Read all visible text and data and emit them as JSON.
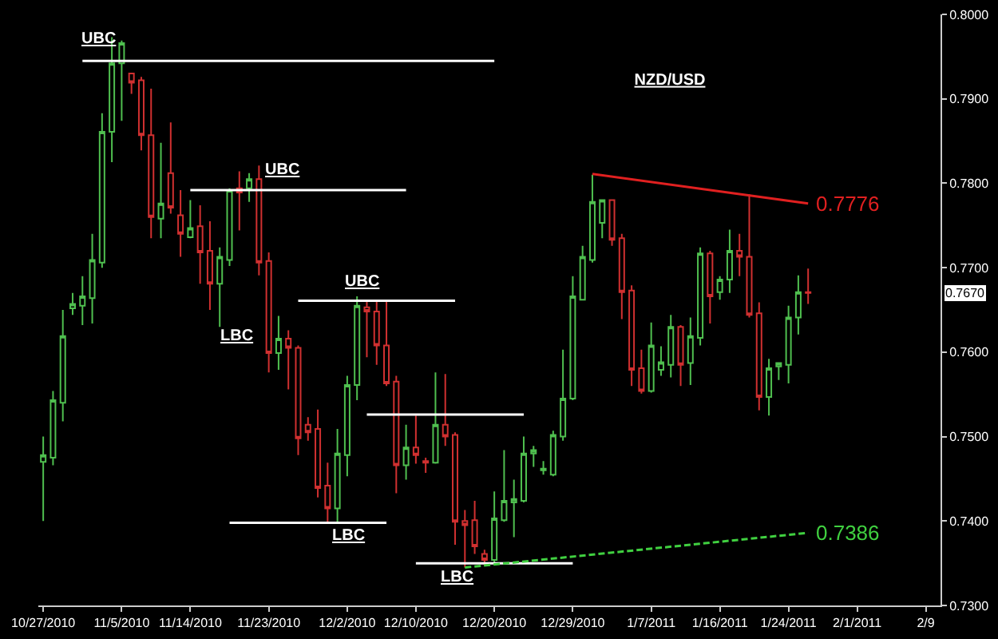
{
  "chart_data": {
    "type": "candlestick",
    "title": "NZD/USD",
    "categories": [
      "10/27/2010",
      null,
      null,
      null,
      null,
      null,
      null,
      null,
      "11/5/2010",
      null,
      null,
      null,
      null,
      null,
      null,
      "11/14/2010",
      null,
      null,
      null,
      null,
      null,
      null,
      null,
      "11/23/2010",
      null,
      null,
      null,
      null,
      null,
      null,
      null,
      "12/2/2010",
      null,
      null,
      null,
      null,
      null,
      null,
      "12/10/2010",
      null,
      null,
      null,
      null,
      null,
      null,
      null,
      "12/20/2010",
      null,
      null,
      null,
      null,
      null,
      null,
      null,
      "12/29/2010",
      null,
      null,
      null,
      null,
      null,
      null,
      null,
      "1/7/2011",
      null,
      null,
      null,
      null,
      null,
      null,
      "1/16/2011",
      null,
      null,
      null,
      null,
      null,
      null,
      "1/24/2011",
      null,
      null,
      null,
      null,
      null,
      null,
      "2/1/2011",
      null,
      null,
      null,
      null,
      null,
      null,
      "2/9",
      null
    ],
    "ylim": [
      0.73,
      0.8
    ],
    "yticks": [
      {
        "value": 0.73,
        "label": "0.7300"
      },
      {
        "value": 0.74,
        "label": "0.7400"
      },
      {
        "value": 0.75,
        "label": "0.7500"
      },
      {
        "value": 0.76,
        "label": "0.7600"
      },
      {
        "value": 0.77,
        "label": "0.7700"
      },
      {
        "value": 0.78,
        "label": "0.7800"
      },
      {
        "value": 0.79,
        "label": "0.7900"
      },
      {
        "value": 0.8,
        "label": "0.8000"
      }
    ],
    "grid": false,
    "series": [
      {
        "ohlc": [
          [
            0.747,
            0.75,
            0.74,
            0.7478
          ],
          [
            0.7475,
            0.7554,
            0.7466,
            0.7543
          ],
          [
            0.754,
            0.765,
            0.7518,
            0.7619
          ],
          [
            0.7652,
            0.767,
            0.7644,
            0.7657
          ],
          [
            0.7655,
            0.769,
            0.7632,
            0.7666
          ],
          [
            0.7664,
            0.774,
            0.7634,
            0.7709
          ],
          [
            0.7706,
            0.7883,
            0.77,
            0.7861
          ],
          [
            0.7861,
            0.7973,
            0.7825,
            0.7942
          ],
          [
            0.7942,
            0.7969,
            0.7874,
            0.7966
          ],
          [
            0.793,
            0.793,
            0.7906,
            0.7919
          ],
          [
            0.7922,
            0.7926,
            0.7839,
            0.7857
          ],
          [
            0.7857,
            0.7912,
            0.7735,
            0.776
          ],
          [
            0.7758,
            0.7848,
            0.7735,
            0.7776
          ],
          [
            0.7812,
            0.7872,
            0.7764,
            0.7771
          ],
          [
            0.7762,
            0.7792,
            0.7713,
            0.774
          ],
          [
            0.7736,
            0.778,
            0.7735,
            0.7747
          ],
          [
            0.7749,
            0.7774,
            0.7681,
            0.7718
          ],
          [
            0.772,
            0.7755,
            0.765,
            0.7681
          ],
          [
            0.7681,
            0.7724,
            0.763,
            0.7713
          ],
          [
            0.7709,
            0.7794,
            0.7702,
            0.7792
          ],
          [
            0.7794,
            0.7814,
            0.7744,
            0.7789
          ],
          [
            0.7794,
            0.7812,
            0.7778,
            0.7805
          ],
          [
            0.7805,
            0.7821,
            0.7691,
            0.7706
          ],
          [
            0.7708,
            0.7718,
            0.7576,
            0.7599
          ],
          [
            0.7599,
            0.7643,
            0.7579,
            0.7616
          ],
          [
            0.7616,
            0.7626,
            0.7556,
            0.7605
          ],
          [
            0.7605,
            0.7608,
            0.7478,
            0.7498
          ],
          [
            0.7514,
            0.7523,
            0.7495,
            0.7505
          ],
          [
            0.7509,
            0.7532,
            0.7428,
            0.7439
          ],
          [
            0.7442,
            0.7469,
            0.7399,
            0.7415
          ],
          [
            0.7415,
            0.7509,
            0.7399,
            0.748
          ],
          [
            0.7478,
            0.7572,
            0.7453,
            0.7561
          ],
          [
            0.7561,
            0.7666,
            0.7543,
            0.7655
          ],
          [
            0.7653,
            0.7661,
            0.7594,
            0.7648
          ],
          [
            0.7648,
            0.7661,
            0.7585,
            0.7608
          ],
          [
            0.7608,
            0.7662,
            0.756,
            0.7563
          ],
          [
            0.7565,
            0.7572,
            0.7433,
            0.7466
          ],
          [
            0.7466,
            0.7514,
            0.7449,
            0.7487
          ],
          [
            0.7487,
            0.7525,
            0.7468,
            0.7478
          ],
          [
            0.7471,
            0.7475,
            0.7457,
            0.7469
          ],
          [
            0.7469,
            0.7576,
            0.7468,
            0.7514
          ],
          [
            0.7514,
            0.7574,
            0.7489,
            0.75
          ],
          [
            0.7502,
            0.7505,
            0.7372,
            0.7399
          ],
          [
            0.74,
            0.7413,
            0.7345,
            0.7395
          ],
          [
            0.7401,
            0.7424,
            0.7361,
            0.737
          ],
          [
            0.7361,
            0.7366,
            0.7347,
            0.7354
          ],
          [
            0.7354,
            0.7435,
            0.735,
            0.7403
          ],
          [
            0.7401,
            0.7484,
            0.7399,
            0.7424
          ],
          [
            0.7422,
            0.7449,
            0.7381,
            0.7426
          ],
          [
            0.7424,
            0.75,
            0.7422,
            0.748
          ],
          [
            0.748,
            0.7489,
            0.7464,
            0.7484
          ],
          [
            0.746,
            0.7471,
            0.7455,
            0.7462
          ],
          [
            0.7455,
            0.7507,
            0.7453,
            0.7502
          ],
          [
            0.75,
            0.7603,
            0.7495,
            0.7545
          ],
          [
            0.7545,
            0.769,
            0.7543,
            0.7666
          ],
          [
            0.7662,
            0.7726,
            0.7662,
            0.7713
          ],
          [
            0.7709,
            0.781,
            0.7706,
            0.7778
          ],
          [
            0.7753,
            0.778,
            0.7735,
            0.778
          ],
          [
            0.778,
            0.778,
            0.7726,
            0.7733
          ],
          [
            0.7735,
            0.774,
            0.7639,
            0.7671
          ],
          [
            0.7673,
            0.7679,
            0.756,
            0.7579
          ],
          [
            0.7581,
            0.7603,
            0.7551,
            0.7554
          ],
          [
            0.7554,
            0.7635,
            0.7552,
            0.7608
          ],
          [
            0.7579,
            0.7607,
            0.7572,
            0.7588
          ],
          [
            0.7585,
            0.7644,
            0.757,
            0.763
          ],
          [
            0.763,
            0.7632,
            0.756,
            0.7585
          ],
          [
            0.7587,
            0.7641,
            0.7561,
            0.7619
          ],
          [
            0.7617,
            0.7724,
            0.7608,
            0.7717
          ],
          [
            0.7717,
            0.772,
            0.7634,
            0.7666
          ],
          [
            0.7671,
            0.769,
            0.7662,
            0.7686
          ],
          [
            0.7686,
            0.7745,
            0.767,
            0.772
          ],
          [
            0.772,
            0.774,
            0.769,
            0.7713
          ],
          [
            0.7713,
            0.7787,
            0.7641,
            0.7644
          ],
          [
            0.7646,
            0.7659,
            0.7531,
            0.7547
          ],
          [
            0.7547,
            0.7592,
            0.7525,
            0.7581
          ],
          [
            0.7583,
            0.7588,
            0.7567,
            0.7587
          ],
          [
            0.7585,
            0.7655,
            0.7563,
            0.7641
          ],
          [
            0.7641,
            0.7691,
            0.7621,
            0.7671
          ],
          [
            0.7671,
            0.7699,
            0.7657,
            0.767
          ],
          null,
          null,
          null,
          null,
          null,
          null,
          null,
          null,
          null,
          null,
          null,
          null,
          null
        ],
        "colors": [
          "#4fbf4f",
          "#4fbf4f",
          "#4fbf4f",
          "#4fbf4f",
          "#4fbf4f",
          "#4fbf4f",
          "#4fbf4f",
          "#4fbf4f",
          "#4fbf4f",
          "#d03030",
          "#d03030",
          "#d03030",
          "#4fbf4f",
          "#d03030",
          "#d03030",
          "#4fbf4f",
          "#d03030",
          "#d03030",
          "#4fbf4f",
          "#4fbf4f",
          "#d03030",
          "#4fbf4f",
          "#d03030",
          "#d03030",
          "#4fbf4f",
          "#d03030",
          "#d03030",
          "#d03030",
          "#d03030",
          "#d03030",
          "#4fbf4f",
          "#4fbf4f",
          "#4fbf4f",
          "#d03030",
          "#d03030",
          "#d03030",
          "#d03030",
          "#4fbf4f",
          "#d03030",
          "#d03030",
          "#4fbf4f",
          "#d03030",
          "#d03030",
          "#d03030",
          "#d03030",
          "#d03030",
          "#4fbf4f",
          "#4fbf4f",
          "#4fbf4f",
          "#4fbf4f",
          "#4fbf4f",
          "#4fbf4f",
          "#4fbf4f",
          "#4fbf4f",
          "#4fbf4f",
          "#4fbf4f",
          "#4fbf4f",
          "#4fbf4f",
          "#d03030",
          "#d03030",
          "#d03030",
          "#d03030",
          "#4fbf4f",
          "#4fbf4f",
          "#4fbf4f",
          "#d03030",
          "#4fbf4f",
          "#4fbf4f",
          "#d03030",
          "#4fbf4f",
          "#4fbf4f",
          "#d03030",
          "#d03030",
          "#d03030",
          "#4fbf4f",
          "#4fbf4f",
          "#4fbf4f",
          "#4fbf4f",
          "#d03030",
          null,
          null,
          null,
          null,
          null,
          null,
          null,
          null,
          null,
          null,
          null,
          null,
          null
        ]
      },
      {
        "type": "line",
        "color": "#ffffff",
        "values": [
          null,
          null,
          null,
          null,
          0.7945,
          0.7945,
          0.7945,
          0.7945,
          0.7945,
          0.7945,
          0.7945,
          0.7945,
          0.7945,
          0.7945,
          0.7945,
          0.7945,
          0.7945,
          0.7945,
          0.7945,
          0.7945,
          0.7945,
          0.7945,
          0.7945,
          0.7945,
          0.7945,
          0.7945,
          0.7945,
          0.7945,
          0.7945,
          0.7945,
          0.7945,
          0.7945,
          0.7945,
          0.7945,
          0.7945,
          0.7945,
          0.7945,
          0.7945,
          0.7945,
          0.7945,
          0.7945,
          0.7945,
          0.7945,
          0.7945,
          0.7945,
          0.7945,
          0.7945,
          null,
          null,
          null,
          null,
          null,
          null,
          null,
          null,
          null,
          null,
          null,
          null,
          null,
          null,
          null,
          null,
          null,
          null,
          null,
          null,
          null,
          null,
          null,
          null,
          null,
          null,
          null,
          null,
          null,
          null,
          null,
          null,
          null,
          null,
          null,
          null,
          null,
          null,
          null,
          null,
          null,
          null,
          null,
          null,
          null
        ]
      },
      {
        "type": "line",
        "color": "#ffffff",
        "values": [
          null,
          null,
          null,
          null,
          null,
          null,
          null,
          null,
          null,
          null,
          null,
          null,
          null,
          null,
          null,
          0.7792,
          0.7792,
          0.7792,
          0.7792,
          0.7792,
          0.7792,
          0.7792,
          0.7792,
          0.7792,
          0.7792,
          0.7792,
          0.7792,
          0.7792,
          0.7792,
          0.7792,
          0.7792,
          0.7792,
          0.7792,
          0.7792,
          0.7792,
          0.7792,
          0.7792,
          0.7792,
          null,
          null,
          null,
          null,
          null,
          null,
          null,
          null,
          null,
          null,
          null,
          null,
          null,
          null,
          null,
          null,
          null,
          null,
          null,
          null,
          null,
          null,
          null,
          null,
          null,
          null,
          null,
          null,
          null,
          null,
          null,
          null,
          null,
          null,
          null,
          null,
          null,
          null,
          null,
          null,
          null,
          null,
          null,
          null,
          null,
          null,
          null,
          null,
          null,
          null,
          null,
          null,
          null,
          null
        ]
      },
      {
        "type": "line",
        "color": "#ffffff",
        "values": [
          null,
          null,
          null,
          null,
          null,
          null,
          null,
          null,
          null,
          null,
          null,
          null,
          null,
          null,
          null,
          null,
          null,
          null,
          null,
          null,
          null,
          null,
          null,
          null,
          null,
          null,
          0.7661,
          0.7661,
          0.7661,
          0.7661,
          0.7661,
          0.7661,
          0.7661,
          0.7661,
          0.7661,
          0.7661,
          0.7661,
          0.7661,
          0.7661,
          0.7661,
          0.7661,
          0.7661,
          0.7661,
          null,
          null,
          null,
          null,
          null,
          null,
          null,
          null,
          null,
          null,
          null,
          null,
          null,
          null,
          null,
          null,
          null,
          null,
          null,
          null,
          null,
          null,
          null,
          null,
          null,
          null,
          null,
          null,
          null,
          null,
          null,
          null,
          null,
          null,
          null,
          null,
          null,
          null,
          null,
          null,
          null,
          null,
          null,
          null,
          null,
          null,
          null,
          null,
          null
        ]
      },
      {
        "type": "line",
        "color": "#ffffff",
        "values": [
          null,
          null,
          null,
          null,
          null,
          null,
          null,
          null,
          null,
          null,
          null,
          null,
          null,
          null,
          null,
          null,
          null,
          null,
          null,
          0.7398,
          0.7398,
          0.7398,
          0.7398,
          0.7398,
          0.7398,
          0.7398,
          0.7398,
          0.7398,
          0.7398,
          0.7398,
          0.7398,
          0.7398,
          0.7398,
          0.7398,
          0.7398,
          0.7398,
          null,
          null,
          null,
          null,
          null,
          null,
          null,
          null,
          null,
          null,
          null,
          null,
          null,
          null,
          null,
          null,
          null,
          null,
          null,
          null,
          null,
          null,
          null,
          null,
          null,
          null,
          null,
          null,
          null,
          null,
          null,
          null,
          null,
          null,
          null,
          null,
          null,
          null,
          null,
          null,
          null,
          null,
          null,
          null,
          null,
          null,
          null,
          null,
          null,
          null,
          null,
          null,
          null,
          null,
          null,
          null
        ]
      },
      {
        "type": "line",
        "color": "#ffffff",
        "values": [
          null,
          null,
          null,
          null,
          null,
          null,
          null,
          null,
          null,
          null,
          null,
          null,
          null,
          null,
          null,
          null,
          null,
          null,
          null,
          null,
          null,
          null,
          null,
          null,
          null,
          null,
          null,
          null,
          null,
          null,
          null,
          null,
          null,
          0.7526,
          0.7526,
          0.7526,
          0.7526,
          0.7526,
          0.7526,
          0.7526,
          0.7526,
          0.7526,
          0.7526,
          0.7526,
          0.7526,
          0.7526,
          0.7526,
          0.7526,
          0.7526,
          0.7526,
          null,
          null,
          null,
          null,
          null,
          null,
          null,
          null,
          null,
          null,
          null,
          null,
          null,
          null,
          null,
          null,
          null,
          null,
          null,
          null,
          null,
          null,
          null,
          null,
          null,
          null,
          null,
          null,
          null,
          null,
          null,
          null,
          null,
          null,
          null,
          null,
          null,
          null,
          null,
          null,
          null,
          null
        ]
      },
      {
        "type": "line",
        "color": "#ffffff",
        "values": [
          null,
          null,
          null,
          null,
          null,
          null,
          null,
          null,
          null,
          null,
          null,
          null,
          null,
          null,
          null,
          null,
          null,
          null,
          null,
          null,
          null,
          null,
          null,
          null,
          null,
          null,
          null,
          null,
          null,
          null,
          null,
          null,
          null,
          null,
          null,
          null,
          null,
          null,
          0.735,
          0.735,
          0.735,
          0.735,
          0.735,
          0.735,
          0.735,
          0.735,
          0.735,
          0.735,
          0.735,
          0.735,
          0.735,
          0.735,
          0.735,
          0.735,
          0.735,
          null,
          null,
          null,
          null,
          null,
          null,
          null,
          null,
          null,
          null,
          null,
          null,
          null,
          null,
          null,
          null,
          null,
          null,
          null,
          null,
          null,
          null,
          null,
          null,
          null,
          null,
          null,
          null,
          null,
          null,
          null,
          null,
          null,
          null,
          null,
          null,
          null
        ]
      },
      {
        "type": "line",
        "color": "#e02020",
        "values": [
          null,
          null,
          null,
          null,
          null,
          null,
          null,
          null,
          null,
          null,
          null,
          null,
          null,
          null,
          null,
          null,
          null,
          null,
          null,
          null,
          null,
          null,
          null,
          null,
          null,
          null,
          null,
          null,
          null,
          null,
          null,
          null,
          null,
          null,
          null,
          null,
          null,
          null,
          null,
          null,
          null,
          null,
          null,
          null,
          null,
          null,
          null,
          null,
          null,
          null,
          null,
          null,
          null,
          null,
          null,
          null,
          0.7811,
          null,
          null,
          null,
          null,
          null,
          null,
          null,
          null,
          null,
          null,
          null,
          null,
          null,
          null,
          null,
          null,
          null,
          null,
          null,
          null,
          null,
          0.7776,
          null,
          null,
          null,
          null,
          null,
          null,
          null,
          null,
          null,
          null,
          null,
          null,
          null
        ],
        "value_labels": [
          null,
          null,
          null,
          null,
          null,
          null,
          null,
          null,
          null,
          null,
          null,
          null,
          null,
          null,
          null,
          null,
          null,
          null,
          null,
          null,
          null,
          null,
          null,
          null,
          null,
          null,
          null,
          null,
          null,
          null,
          null,
          null,
          null,
          null,
          null,
          null,
          null,
          null,
          null,
          null,
          null,
          null,
          null,
          null,
          null,
          null,
          null,
          null,
          null,
          null,
          null,
          null,
          null,
          null,
          null,
          null,
          null,
          null,
          null,
          null,
          null,
          null,
          null,
          null,
          null,
          null,
          null,
          null,
          null,
          null,
          null,
          null,
          null,
          null,
          null,
          null,
          null,
          null,
          "0.7776",
          null,
          null,
          null,
          null,
          null,
          null,
          null,
          null,
          null,
          null,
          null,
          null,
          null
        ]
      },
      {
        "type": "line",
        "color": "#40d040",
        "line_style": "dashed",
        "values": [
          null,
          null,
          null,
          null,
          null,
          null,
          null,
          null,
          null,
          null,
          null,
          null,
          null,
          null,
          null,
          null,
          null,
          null,
          null,
          null,
          null,
          null,
          null,
          null,
          null,
          null,
          null,
          null,
          null,
          null,
          null,
          null,
          null,
          null,
          null,
          null,
          null,
          null,
          null,
          null,
          null,
          null,
          null,
          0.7345,
          null,
          null,
          null,
          null,
          null,
          null,
          null,
          null,
          null,
          null,
          null,
          null,
          null,
          null,
          null,
          null,
          null,
          null,
          null,
          null,
          null,
          null,
          null,
          null,
          null,
          null,
          null,
          null,
          null,
          null,
          null,
          null,
          null,
          null,
          0.7386,
          null,
          null,
          null,
          null,
          null,
          null,
          null,
          null,
          null,
          null,
          null,
          null,
          null
        ],
        "value_labels": [
          null,
          null,
          null,
          null,
          null,
          null,
          null,
          null,
          null,
          null,
          null,
          null,
          null,
          null,
          null,
          null,
          null,
          null,
          null,
          null,
          null,
          null,
          null,
          null,
          null,
          null,
          null,
          null,
          null,
          null,
          null,
          null,
          null,
          null,
          null,
          null,
          null,
          null,
          null,
          null,
          null,
          null,
          null,
          null,
          null,
          null,
          null,
          null,
          null,
          null,
          null,
          null,
          null,
          null,
          null,
          null,
          null,
          null,
          null,
          null,
          null,
          null,
          null,
          null,
          null,
          null,
          null,
          null,
          null,
          null,
          null,
          null,
          null,
          null,
          null,
          null,
          null,
          null,
          "0.7386",
          null,
          null,
          null,
          null,
          null,
          null,
          null,
          null,
          null,
          null,
          null,
          null,
          null
        ]
      }
    ],
    "annotations": [
      "UBC",
      "UBC",
      "LBC",
      "UBC",
      "LBC",
      "LBC",
      "0.7670"
    ]
  }
}
